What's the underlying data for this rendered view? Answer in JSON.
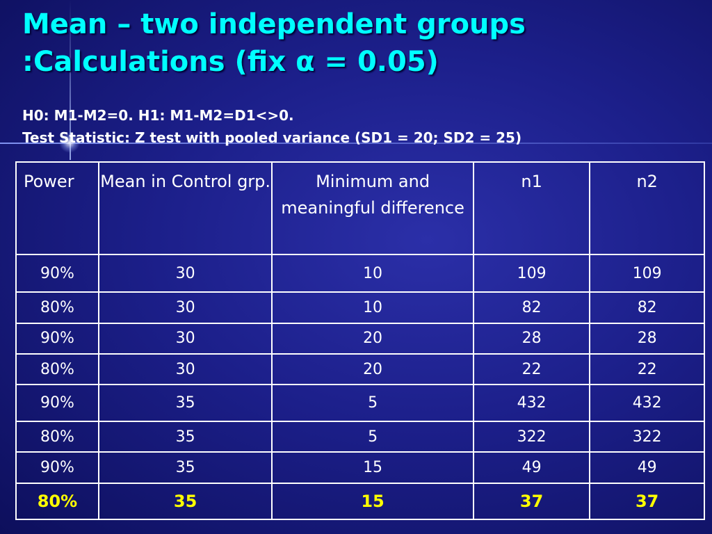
{
  "slide": {
    "title_line1": "Mean – two independent groups",
    "title_line2": ":Calculations (fix α = 0.05)",
    "subtitle_line1": "H0: M1-M2=0. H1: M1-M2=D1<>0.",
    "subtitle_line2": "Test Statistic: Z test with pooled variance (SD1 = 20; SD2 = 25)"
  },
  "table": {
    "headers": [
      "Power",
      "Mean in Control grp.",
      "Minimum and meaningful difference",
      "n1",
      "n2"
    ],
    "rows": [
      [
        "90%",
        "30",
        "10",
        "109",
        "109"
      ],
      [
        "80%",
        "30",
        "10",
        "82",
        "82"
      ],
      [
        "90%",
        "30",
        "20",
        "28",
        "28"
      ],
      [
        "80%",
        "30",
        "20",
        "22",
        "22"
      ],
      [
        "90%",
        "35",
        "5",
        "432",
        "432"
      ],
      [
        "80%",
        "35",
        "5",
        "322",
        "322"
      ],
      [
        "90%",
        "35",
        "15",
        "49",
        "49"
      ],
      [
        "80%",
        "35",
        "15",
        "37",
        "37"
      ]
    ],
    "highlight_color": "#ffff00"
  },
  "colors": {
    "background": "#1c1f8a",
    "title": "#00ffff",
    "text": "#ffffff"
  }
}
